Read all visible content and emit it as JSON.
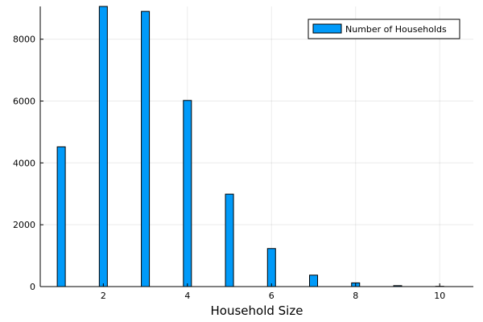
{
  "chart_data": {
    "type": "bar",
    "x": [
      1,
      2,
      3,
      4,
      5,
      6,
      7,
      8,
      9,
      10
    ],
    "series": [
      {
        "name": "Number of Households",
        "values": [
          4520,
          9060,
          8900,
          6020,
          2990,
          1230,
          370,
          120,
          30,
          8
        ],
        "color": "#009AF9"
      }
    ],
    "title": "",
    "xlabel": "Household Size",
    "ylabel": "",
    "xlim": [
      0.5,
      10.8
    ],
    "ylim": [
      0,
      9060
    ],
    "xticks": [
      2,
      4,
      6,
      8,
      10
    ],
    "yticks": [
      0,
      2000,
      4000,
      6000,
      8000
    ],
    "grid": true,
    "legend_position": "top-right"
  }
}
